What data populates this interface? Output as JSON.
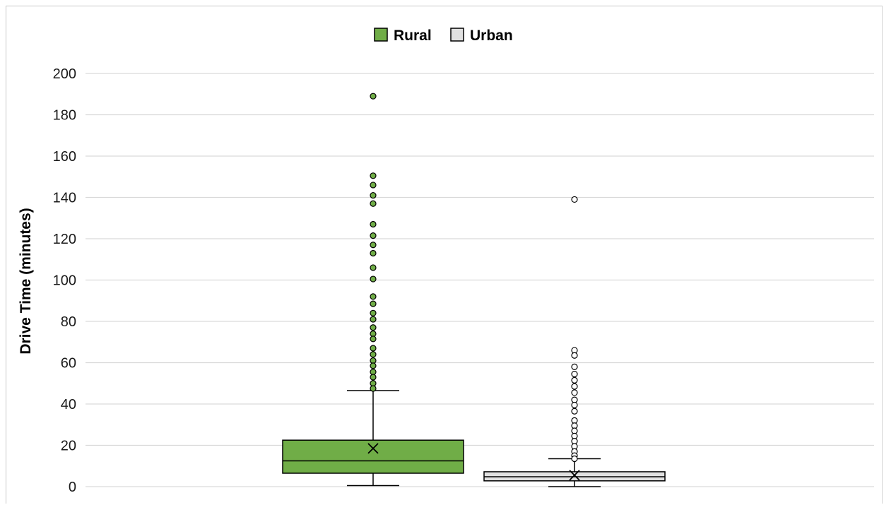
{
  "chart_data": {
    "type": "box",
    "ylabel": "Drive Time (minutes)",
    "xlabel": "",
    "ylim": [
      0,
      200
    ],
    "yticks": [
      0,
      20,
      40,
      60,
      80,
      100,
      120,
      140,
      160,
      180,
      200
    ],
    "grid": "horizontal",
    "legend_position": "top-center",
    "series": [
      {
        "name": "Rural",
        "color": "#70ad47",
        "q1": 6.5,
        "median": 12.5,
        "q3": 22.5,
        "mean": 18.5,
        "whisker_low": 0.5,
        "whisker_high": 46.5,
        "outliers": [
          189,
          150.5,
          146,
          141,
          137,
          127,
          121.5,
          117,
          113,
          106,
          100.5,
          92,
          88.5,
          84,
          81,
          77,
          74,
          71.5,
          67,
          64,
          61,
          58.5,
          55.5,
          53,
          50,
          47.5
        ]
      },
      {
        "name": "Urban",
        "color": "#e0e0e0",
        "q1": 2.8,
        "median": 4.8,
        "q3": 7.2,
        "mean": 5.5,
        "whisker_low": 0,
        "whisker_high": 13.5,
        "outliers": [
          139,
          66,
          63.5,
          58,
          54.5,
          51.5,
          48.5,
          45.5,
          42,
          39.5,
          36.5,
          32,
          29.5,
          27,
          24.5,
          22,
          19.5,
          17,
          15,
          13.5
        ]
      }
    ]
  }
}
